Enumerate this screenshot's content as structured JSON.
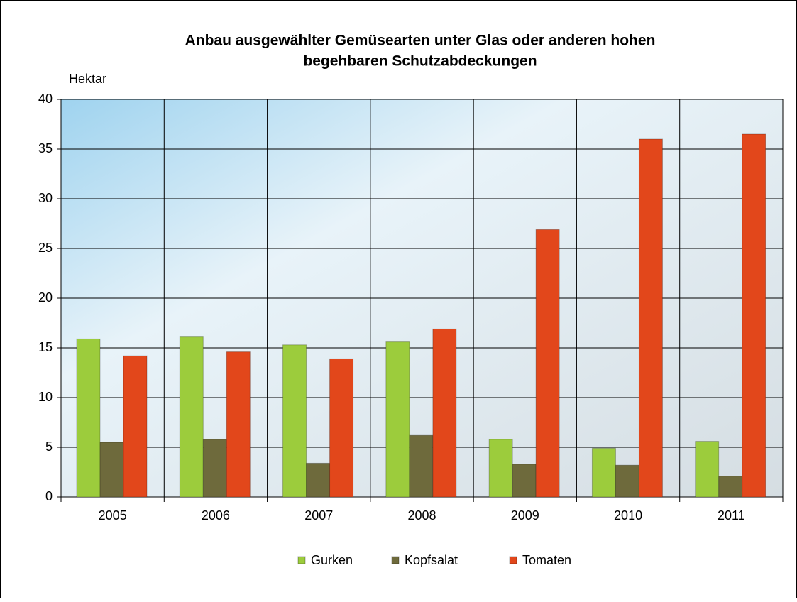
{
  "chart_data": {
    "type": "bar",
    "title": [
      "Anbau ausgewählter Gemüsearten unter Glas oder anderen hohen",
      "begehbaren Schutzabdeckungen"
    ],
    "y_label": "Hektar",
    "categories": [
      "2005",
      "2006",
      "2007",
      "2008",
      "2009",
      "2010",
      "2011"
    ],
    "series": [
      {
        "name": "Gurken",
        "color": "#9ccc3c",
        "values": [
          15.9,
          16.1,
          15.3,
          15.6,
          5.8,
          4.9,
          5.6
        ]
      },
      {
        "name": "Kopfsalat",
        "color": "#6e6a3c",
        "values": [
          5.5,
          5.8,
          3.4,
          6.2,
          3.3,
          3.2,
          2.1
        ]
      },
      {
        "name": "Tomaten",
        "color": "#e2471b",
        "values": [
          14.2,
          14.6,
          13.9,
          16.9,
          26.9,
          36.0,
          36.5
        ]
      }
    ],
    "ylim": [
      0,
      40
    ],
    "yticks": [
      0,
      5,
      10,
      15,
      20,
      25,
      30,
      35,
      40
    ],
    "grid": true,
    "legend": "bottom"
  }
}
